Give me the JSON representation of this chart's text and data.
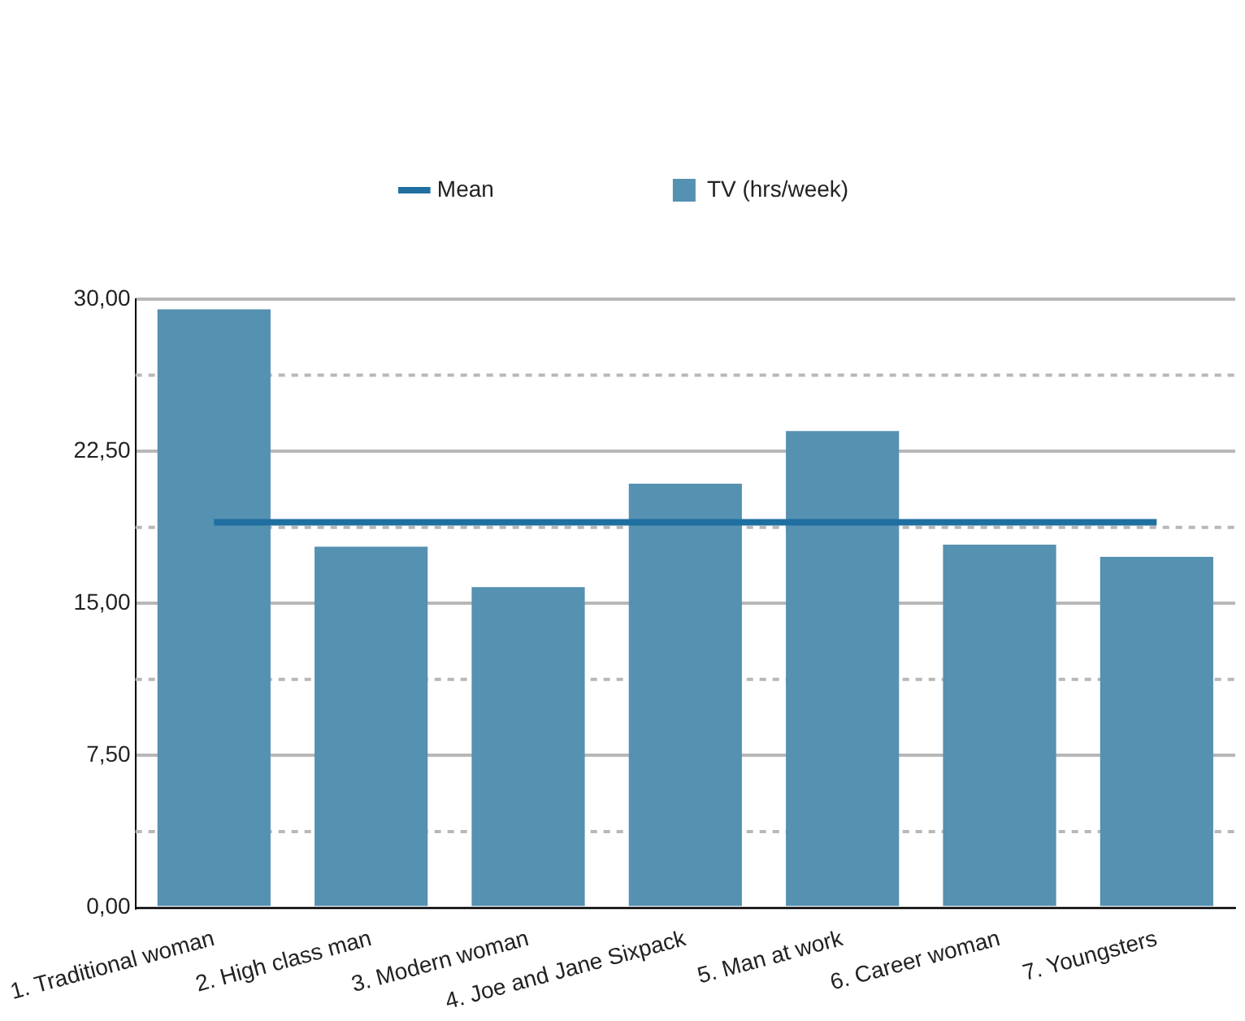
{
  "chart_data": {
    "type": "bar",
    "categories": [
      "1. Traditional woman",
      "2. High class man",
      "3. Modern woman",
      "4. Joe and Jane Sixpack",
      "5. Man at work",
      "6. Career woman",
      "7. Youngsters"
    ],
    "series": [
      {
        "name": "TV (hrs/week)",
        "color": "#5591b1",
        "values": [
          29.5,
          17.8,
          15.8,
          20.9,
          23.5,
          17.9,
          17.3
        ]
      },
      {
        "name": "Mean",
        "type": "line",
        "color": "#1f6fa0",
        "values": [
          19.0,
          19.0,
          19.0,
          19.0,
          19.0,
          19.0,
          19.0
        ]
      }
    ],
    "ylim": [
      0,
      30
    ],
    "yticks": [
      {
        "value": 0,
        "label": "0,00"
      },
      {
        "value": 3.75,
        "label": null
      },
      {
        "value": 7.5,
        "label": "7,50"
      },
      {
        "value": 11.25,
        "label": null
      },
      {
        "value": 15,
        "label": "15,00"
      },
      {
        "value": 18.75,
        "label": null
      },
      {
        "value": 22.5,
        "label": "22,50"
      },
      {
        "value": 26.25,
        "label": null
      },
      {
        "value": 30,
        "label": "30,00"
      }
    ],
    "grid": "y",
    "legend": "top",
    "marker": "none"
  }
}
